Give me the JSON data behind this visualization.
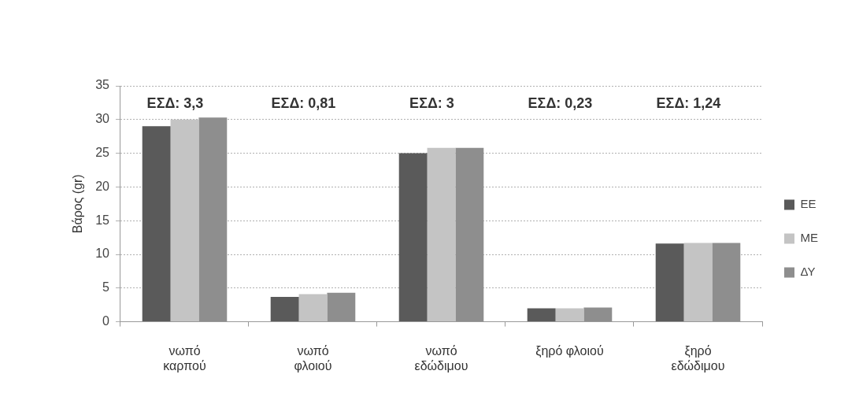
{
  "chart_data": {
    "type": "bar",
    "categories": [
      "νωπό\nκαρπού",
      "νωπό\nφλοιού",
      "νωπό\nεδώδιμου",
      "ξηρό φλοιού",
      "ξηρό\nεδώδιμου"
    ],
    "series": [
      {
        "name": "ΕΕ",
        "color": "#5a5a5a",
        "values": [
          29,
          3.7,
          25,
          2,
          11.6
        ]
      },
      {
        "name": "ΜΕ",
        "color": "#c4c4c4",
        "values": [
          30,
          4.1,
          25.8,
          2,
          11.7
        ]
      },
      {
        "name": "ΔΥ",
        "color": "#8e8e8e",
        "values": [
          30.3,
          4.3,
          25.8,
          2.1,
          11.7
        ]
      }
    ],
    "ylabel": "Βάρος (gr)",
    "ylim": [
      0,
      35
    ],
    "yticks": [
      0,
      5,
      10,
      15,
      20,
      25,
      30,
      35
    ],
    "grid": "y",
    "legend": "right",
    "annotations": [
      "ΕΣΔ: 3,3",
      "ΕΣΔ: 0,81",
      "ΕΣΔ: 3",
      "ΕΣΔ: 0,23",
      "ΕΣΔ: 1,24"
    ]
  }
}
